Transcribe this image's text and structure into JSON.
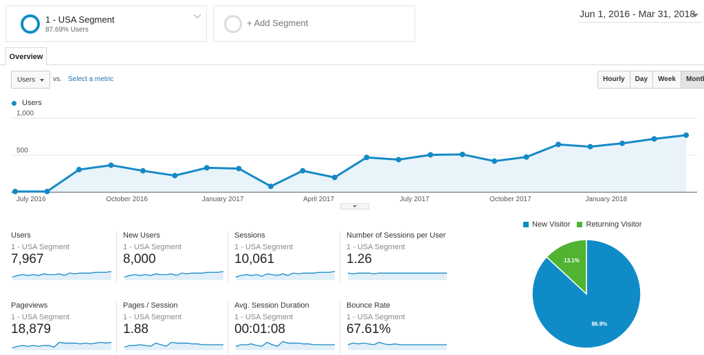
{
  "segments": {
    "primary": {
      "name": "1 - USA Segment",
      "sub": "87.69% Users"
    },
    "add_label": "+ Add Segment"
  },
  "date_range": "Jun 1, 2016 - Mar 31, 2018",
  "tabs": [
    {
      "label": "Overview"
    }
  ],
  "controls": {
    "metric": "Users",
    "vs": "vs.",
    "select_metric": "Select a metric",
    "periods": [
      {
        "label": "Hourly",
        "active": false
      },
      {
        "label": "Day",
        "active": false
      },
      {
        "label": "Week",
        "active": false
      },
      {
        "label": "Month",
        "active": true
      }
    ]
  },
  "chart_data": [
    {
      "type": "area",
      "series": [
        {
          "name": "Users",
          "color": "#1589c6",
          "values": [
            10,
            10,
            305,
            365,
            290,
            225,
            330,
            320,
            80,
            290,
            200,
            470,
            440,
            505,
            510,
            420,
            475,
            645,
            615,
            660,
            720,
            770
          ]
        }
      ],
      "x": [
        "2016-06",
        "2016-07",
        "2016-08",
        "2016-09",
        "2016-10",
        "2016-11",
        "2016-12",
        "2017-01",
        "2017-02",
        "2017-03",
        "2017-04",
        "2017-05",
        "2017-06",
        "2017-07",
        "2017-08",
        "2017-09",
        "2017-10",
        "2017-11",
        "2017-12",
        "2018-01",
        "2018-02",
        "2018-03"
      ],
      "x_tick_labels": [
        {
          "index": 0.5,
          "label": "July 2016"
        },
        {
          "index": 3.5,
          "label": "October 2016"
        },
        {
          "index": 6.5,
          "label": "January 2017"
        },
        {
          "index": 9.5,
          "label": "April 2017"
        },
        {
          "index": 12.5,
          "label": "July 2017"
        },
        {
          "index": 15.5,
          "label": "October 2017"
        },
        {
          "index": 18.5,
          "label": "January 2018"
        }
      ],
      "y_ticks": [
        "1,000",
        "500"
      ],
      "ylim": [
        0,
        1000
      ],
      "grid": true,
      "legend": "top-left"
    },
    {
      "type": "pie",
      "slices": [
        {
          "name": "New Visitor",
          "value": 86.9,
          "label": "86.9%",
          "color": "#0f8cc7"
        },
        {
          "name": "Returning Visitor",
          "value": 13.1,
          "label": "13.1%",
          "color": "#50b432"
        }
      ],
      "legend": "top"
    }
  ],
  "metrics": [
    {
      "title": "Users",
      "segment": "1 - USA Segment",
      "value": "7,967",
      "spark": [
        3,
        5,
        6,
        5,
        6,
        5,
        7,
        6,
        6,
        7,
        5,
        8,
        7,
        8,
        8,
        8,
        9,
        9,
        9,
        10
      ]
    },
    {
      "title": "New Users",
      "segment": "1 - USA Segment",
      "value": "8,000",
      "spark": [
        3,
        5,
        6,
        5,
        6,
        5,
        7,
        6,
        6,
        7,
        5,
        8,
        7,
        8,
        8,
        8,
        9,
        9,
        9,
        10
      ]
    },
    {
      "title": "Sessions",
      "segment": "1 - USA Segment",
      "value": "10,061",
      "spark": [
        3,
        5,
        6,
        5,
        6,
        4,
        7,
        6,
        5,
        7,
        5,
        8,
        7,
        8,
        8,
        8,
        9,
        9,
        9,
        10
      ]
    },
    {
      "title": "Number of Sessions per User",
      "segment": "1 - USA Segment",
      "value": "1.26",
      "spark": [
        8,
        7,
        8,
        8,
        8,
        7,
        8,
        8,
        8,
        8,
        8,
        8,
        8,
        8,
        8,
        8,
        8,
        8,
        8,
        8
      ]
    },
    {
      "title": "Pageviews",
      "segment": "1 - USA Segment",
      "value": "18,879",
      "spark": [
        2,
        4,
        5,
        4,
        5,
        4,
        5,
        5,
        3,
        9,
        8,
        8,
        8,
        7,
        8,
        7,
        8,
        9,
        8,
        9
      ]
    },
    {
      "title": "Pages / Session",
      "segment": "1 - USA Segment",
      "value": "1.88",
      "spark": [
        3,
        5,
        5,
        6,
        5,
        4,
        8,
        6,
        4,
        9,
        8,
        8,
        8,
        7,
        7,
        6,
        6,
        6,
        6,
        6
      ]
    },
    {
      "title": "Avg. Session Duration",
      "segment": "1 - USA Segment",
      "value": "00:01:08",
      "spark": [
        4,
        6,
        6,
        7,
        5,
        4,
        9,
        6,
        4,
        10,
        8,
        8,
        8,
        7,
        7,
        6,
        6,
        6,
        6,
        6
      ]
    },
    {
      "title": "Bounce Rate",
      "segment": "1 - USA Segment",
      "value": "67.61%",
      "spark": [
        6,
        8,
        7,
        8,
        7,
        6,
        9,
        7,
        6,
        7,
        6,
        6,
        6,
        6,
        6,
        6,
        6,
        6,
        6,
        6
      ]
    }
  ]
}
